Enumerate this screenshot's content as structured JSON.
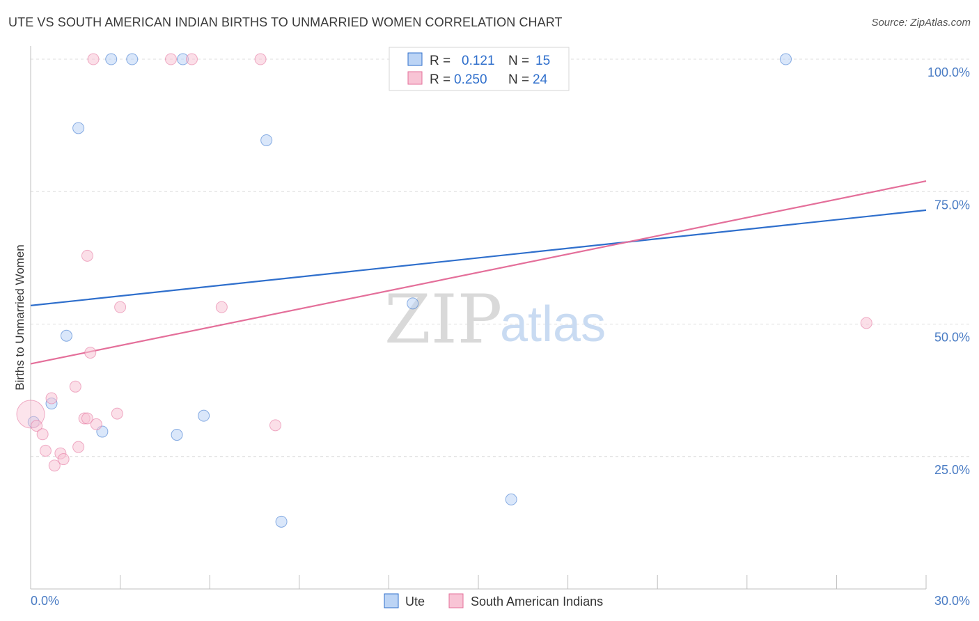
{
  "title": "UTE VS SOUTH AMERICAN INDIAN BIRTHS TO UNMARRIED WOMEN CORRELATION CHART",
  "source": "Source: ZipAtlas.com",
  "watermark": {
    "zip": "ZIP",
    "atlas": "atlas"
  },
  "legend": {
    "rows": [
      {
        "r_label": "R =",
        "r_value": "0.121",
        "n_label": "N =",
        "n_value": "15"
      },
      {
        "r_label": "R =",
        "r_value": "0.250",
        "n_label": "N =",
        "n_value": "24"
      }
    ]
  },
  "chart_data": {
    "type": "scatter",
    "title": "UTE VS SOUTH AMERICAN INDIAN BIRTHS TO UNMARRIED WOMEN CORRELATION CHART",
    "xlabel": "",
    "ylabel": "Births to Unmarried Women",
    "xlim": [
      0,
      30
    ],
    "ylim": [
      0,
      102.5
    ],
    "x_tick_labels": [
      "0.0%",
      "30.0%"
    ],
    "y_ticks": [
      25,
      50,
      75,
      100
    ],
    "y_tick_labels": [
      "25.0%",
      "50.0%",
      "75.0%",
      "100.0%"
    ],
    "colors": {
      "ute": "#2f6fcc",
      "sai": "#e46f9a",
      "ute_fill": "#bcd4f5",
      "sai_fill": "#f8c4d5"
    },
    "series": [
      {
        "name": "Ute",
        "r": 0.121,
        "n": 15,
        "trend": {
          "x": [
            0,
            30
          ],
          "y": [
            53.5,
            71.5
          ]
        },
        "points": [
          {
            "x": 0.1,
            "y": 31.5
          },
          {
            "x": 1.6,
            "y": 87
          },
          {
            "x": 2.7,
            "y": 100
          },
          {
            "x": 3.4,
            "y": 100
          },
          {
            "x": 5.1,
            "y": 100
          },
          {
            "x": 7.9,
            "y": 84.7
          },
          {
            "x": 1.2,
            "y": 47.8
          },
          {
            "x": 0.7,
            "y": 35
          },
          {
            "x": 2.4,
            "y": 29.7
          },
          {
            "x": 4.9,
            "y": 29.1
          },
          {
            "x": 5.8,
            "y": 32.7
          },
          {
            "x": 12.8,
            "y": 53.9
          },
          {
            "x": 16.1,
            "y": 16.9
          },
          {
            "x": 8.4,
            "y": 12.7
          },
          {
            "x": 25.3,
            "y": 100
          }
        ]
      },
      {
        "name": "South American Indians",
        "r": 0.25,
        "n": 24,
        "trend": {
          "x": [
            0,
            30
          ],
          "y": [
            42.5,
            77
          ]
        },
        "points": [
          {
            "x": 0.0,
            "y": 33
          },
          {
            "x": 0.2,
            "y": 30.8
          },
          {
            "x": 0.4,
            "y": 29.2
          },
          {
            "x": 0.5,
            "y": 26.1
          },
          {
            "x": 0.7,
            "y": 36
          },
          {
            "x": 0.8,
            "y": 23.3
          },
          {
            "x": 1.0,
            "y": 25.6
          },
          {
            "x": 1.1,
            "y": 24.5
          },
          {
            "x": 1.5,
            "y": 38.2
          },
          {
            "x": 1.6,
            "y": 26.8
          },
          {
            "x": 1.8,
            "y": 32.2
          },
          {
            "x": 1.9,
            "y": 32.2
          },
          {
            "x": 2.0,
            "y": 44.6
          },
          {
            "x": 2.2,
            "y": 31.1
          },
          {
            "x": 2.9,
            "y": 33.1
          },
          {
            "x": 1.9,
            "y": 62.9
          },
          {
            "x": 3.0,
            "y": 53.2
          },
          {
            "x": 6.4,
            "y": 53.2
          },
          {
            "x": 8.2,
            "y": 30.9
          },
          {
            "x": 2.1,
            "y": 100
          },
          {
            "x": 4.7,
            "y": 100
          },
          {
            "x": 5.4,
            "y": 100
          },
          {
            "x": 7.7,
            "y": 100
          },
          {
            "x": 28.0,
            "y": 50.2
          }
        ]
      }
    ]
  }
}
